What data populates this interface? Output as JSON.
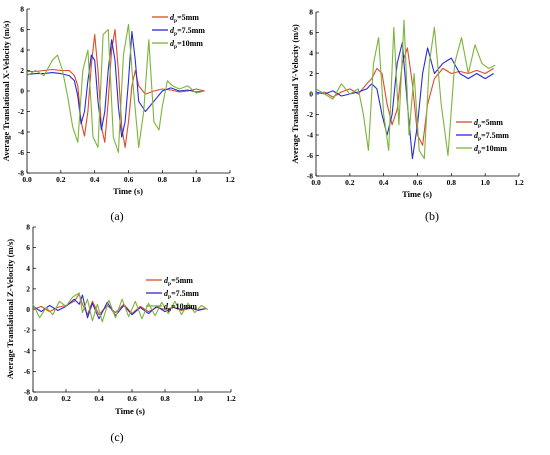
{
  "series_styles": [
    {
      "name": "5mm",
      "color": "#e0492a"
    },
    {
      "name": "7.5mm",
      "color": "#2a2ad8"
    },
    {
      "name": "10mm",
      "color": "#7cb43a"
    }
  ],
  "legend": [
    "5mm",
    "7.5mm",
    "10mm"
  ],
  "chart_data": [
    {
      "type": "line",
      "panel": "(a)",
      "ylabel": "Average Translational X-Velocity (m/s)",
      "xlabel": "Time (s)",
      "xlim": [
        0.0,
        1.2
      ],
      "ylim": [
        -8,
        8
      ],
      "xticks": [
        "0.0",
        "0.2",
        "0.4",
        "0.6",
        "0.8",
        "1.0",
        "1.2"
      ],
      "yticks": [
        "8",
        "6",
        "4",
        "2",
        "0",
        "-2",
        "-4",
        "-6",
        "-8"
      ],
      "series": [
        {
          "name": "5mm",
          "x": [
            0.0,
            0.05,
            0.1,
            0.15,
            0.2,
            0.25,
            0.28,
            0.3,
            0.32,
            0.34,
            0.36,
            0.38,
            0.4,
            0.42,
            0.44,
            0.46,
            0.48,
            0.5,
            0.52,
            0.54,
            0.56,
            0.58,
            0.6,
            0.62,
            0.64,
            0.66,
            0.7,
            0.75,
            0.8,
            0.85,
            0.9,
            0.95,
            1.0,
            1.05
          ],
          "y": [
            1.9,
            1.9,
            2.0,
            2.1,
            2.0,
            2.0,
            1.5,
            0.5,
            -3.0,
            -4.4,
            -2.0,
            2.5,
            5.5,
            2.0,
            -3.5,
            -5.0,
            -1.0,
            4.0,
            6.0,
            2.0,
            -3.5,
            -5.5,
            -3.0,
            0.5,
            2.0,
            0.5,
            -0.3,
            0.0,
            0.2,
            0.1,
            -0.1,
            0.0,
            0.2,
            0.0
          ]
        },
        {
          "name": "7.5mm",
          "x": [
            0.0,
            0.05,
            0.1,
            0.15,
            0.2,
            0.25,
            0.28,
            0.3,
            0.32,
            0.34,
            0.36,
            0.38,
            0.4,
            0.42,
            0.44,
            0.46,
            0.48,
            0.5,
            0.52,
            0.54,
            0.56,
            0.58,
            0.6,
            0.62,
            0.64,
            0.66,
            0.7,
            0.75,
            0.8,
            0.85,
            0.9,
            0.95,
            1.0,
            1.05
          ],
          "y": [
            1.6,
            1.7,
            1.7,
            1.8,
            1.7,
            1.5,
            1.0,
            -0.5,
            -3.2,
            -2.0,
            1.0,
            3.5,
            3.0,
            -1.0,
            -3.8,
            -2.0,
            2.0,
            5.0,
            3.0,
            -1.5,
            -4.5,
            -3.0,
            1.0,
            5.8,
            3.0,
            -1.0,
            -2.0,
            -1.0,
            0.0,
            0.3,
            0.0,
            0.1,
            -0.1,
            0.0
          ]
        },
        {
          "name": "10mm",
          "x": [
            0.0,
            0.05,
            0.1,
            0.15,
            0.18,
            0.21,
            0.24,
            0.27,
            0.3,
            0.33,
            0.36,
            0.39,
            0.42,
            0.45,
            0.48,
            0.51,
            0.54,
            0.57,
            0.6,
            0.63,
            0.66,
            0.69,
            0.72,
            0.75,
            0.78,
            0.8,
            0.83,
            0.86,
            0.9,
            0.95,
            1.0,
            1.05
          ],
          "y": [
            1.5,
            2.0,
            1.5,
            3.0,
            3.5,
            2.0,
            -0.5,
            -3.5,
            -5.0,
            2.0,
            4.0,
            -4.5,
            -5.5,
            5.5,
            6.0,
            -4.5,
            -6.0,
            3.5,
            6.5,
            0.0,
            -5.5,
            -2.0,
            5.0,
            -3.0,
            -3.8,
            -1.5,
            1.0,
            0.5,
            0.2,
            0.5,
            -0.2,
            0.0
          ]
        }
      ]
    },
    {
      "type": "line",
      "panel": "(b)",
      "ylabel": "Average Translational Y-Velocity (m/s)",
      "xlabel": "Time (s)",
      "xlim": [
        0.0,
        1.2
      ],
      "ylim": [
        -8,
        8
      ],
      "xticks": [
        "0.0",
        "0.2",
        "0.4",
        "0.6",
        "0.8",
        "1.0",
        "1.2"
      ],
      "yticks": [
        "8",
        "6",
        "4",
        "2",
        "0",
        "-2",
        "-4",
        "-6",
        "-8"
      ],
      "series": [
        {
          "name": "5mm",
          "x": [
            0.0,
            0.05,
            0.1,
            0.15,
            0.2,
            0.25,
            0.3,
            0.33,
            0.36,
            0.39,
            0.42,
            0.45,
            0.48,
            0.51,
            0.54,
            0.57,
            0.6,
            0.63,
            0.66,
            0.7,
            0.75,
            0.8,
            0.85,
            0.9,
            0.95,
            1.0,
            1.05
          ],
          "y": [
            0.0,
            0.2,
            -0.3,
            0.2,
            0.5,
            0.0,
            1.0,
            1.5,
            2.5,
            2.0,
            -1.0,
            -3.0,
            -1.5,
            3.0,
            4.5,
            1.0,
            -4.0,
            -5.0,
            -1.0,
            1.5,
            2.5,
            2.0,
            2.2,
            2.0,
            2.3,
            2.0,
            2.5
          ]
        },
        {
          "name": "7.5mm",
          "x": [
            0.0,
            0.05,
            0.1,
            0.15,
            0.2,
            0.25,
            0.3,
            0.33,
            0.36,
            0.39,
            0.42,
            0.45,
            0.48,
            0.51,
            0.54,
            0.57,
            0.6,
            0.63,
            0.66,
            0.7,
            0.75,
            0.8,
            0.85,
            0.9,
            0.95,
            1.0,
            1.05
          ],
          "y": [
            0.2,
            0.0,
            0.3,
            -0.2,
            0.0,
            0.2,
            0.5,
            1.0,
            0.5,
            -2.0,
            -4.0,
            -2.0,
            3.0,
            5.0,
            -1.0,
            -6.3,
            -3.0,
            2.0,
            4.5,
            2.0,
            3.0,
            3.5,
            2.0,
            1.5,
            2.0,
            1.5,
            2.0
          ]
        },
        {
          "name": "10mm",
          "x": [
            0.0,
            0.05,
            0.1,
            0.15,
            0.2,
            0.25,
            0.28,
            0.31,
            0.34,
            0.37,
            0.4,
            0.43,
            0.46,
            0.49,
            0.52,
            0.55,
            0.58,
            0.61,
            0.64,
            0.67,
            0.7,
            0.74,
            0.78,
            0.82,
            0.86,
            0.9,
            0.94,
            0.98,
            1.02,
            1.06
          ],
          "y": [
            0.5,
            0.0,
            -0.5,
            1.0,
            0.0,
            0.5,
            -2.0,
            -5.5,
            3.0,
            5.5,
            -2.0,
            -5.5,
            6.5,
            -3.0,
            7.2,
            -4.0,
            2.0,
            -5.5,
            -6.3,
            3.0,
            6.5,
            -1.0,
            -6.0,
            3.0,
            5.5,
            2.0,
            4.8,
            3.0,
            2.5,
            2.8
          ]
        }
      ]
    },
    {
      "type": "line",
      "panel": "(c)",
      "ylabel": "Average Translational Z-Velocity (m/s)",
      "xlabel": "Time (s)",
      "xlim": [
        0.0,
        1.2
      ],
      "ylim": [
        -8,
        8
      ],
      "xticks": [
        "0.0",
        "0.2",
        "0.4",
        "0.6",
        "0.8",
        "1.0",
        "1.2"
      ],
      "yticks": [
        "8",
        "6",
        "4",
        "2",
        "0",
        "-2",
        "-4",
        "-6",
        "-8"
      ],
      "series": [
        {
          "name": "5mm",
          "x": [
            0.0,
            0.05,
            0.1,
            0.15,
            0.2,
            0.25,
            0.28,
            0.3,
            0.33,
            0.36,
            0.4,
            0.45,
            0.5,
            0.55,
            0.6,
            0.65,
            0.7,
            0.75,
            0.8,
            0.85,
            0.9,
            0.95,
            1.0,
            1.05
          ],
          "y": [
            0.0,
            0.3,
            -0.2,
            0.2,
            0.4,
            0.8,
            1.5,
            0.5,
            -0.5,
            0.8,
            -0.5,
            0.4,
            -0.3,
            0.5,
            -0.4,
            0.3,
            -0.2,
            0.2,
            0.0,
            0.2,
            -0.1,
            0.1,
            0.0,
            0.1
          ]
        },
        {
          "name": "7.5mm",
          "x": [
            0.0,
            0.05,
            0.1,
            0.15,
            0.2,
            0.25,
            0.28,
            0.3,
            0.33,
            0.36,
            0.4,
            0.45,
            0.5,
            0.55,
            0.6,
            0.65,
            0.7,
            0.75,
            0.8,
            0.85,
            0.9,
            0.95,
            1.0,
            1.05
          ],
          "y": [
            0.3,
            -0.2,
            0.4,
            -0.1,
            0.3,
            1.0,
            0.5,
            1.4,
            -0.8,
            0.6,
            -0.9,
            0.7,
            -0.6,
            0.4,
            -0.5,
            0.2,
            -0.4,
            0.3,
            -0.2,
            0.2,
            0.0,
            0.2,
            -0.1,
            0.1
          ]
        },
        {
          "name": "10mm",
          "x": [
            0.0,
            0.04,
            0.08,
            0.12,
            0.16,
            0.2,
            0.24,
            0.28,
            0.3,
            0.33,
            0.36,
            0.39,
            0.42,
            0.46,
            0.5,
            0.54,
            0.58,
            0.62,
            0.66,
            0.7,
            0.74,
            0.78,
            0.82,
            0.86,
            0.9,
            0.94,
            0.98,
            1.02,
            1.06
          ],
          "y": [
            0.5,
            -0.8,
            0.2,
            -0.5,
            0.8,
            0.3,
            1.2,
            1.6,
            -0.3,
            1.0,
            -1.1,
            0.5,
            -1.2,
            0.9,
            -0.8,
            1.0,
            -0.7,
            0.8,
            -0.9,
            0.6,
            -0.6,
            0.7,
            -0.4,
            0.8,
            -0.5,
            0.6,
            -0.3,
            0.4,
            0.0
          ]
        }
      ]
    }
  ]
}
